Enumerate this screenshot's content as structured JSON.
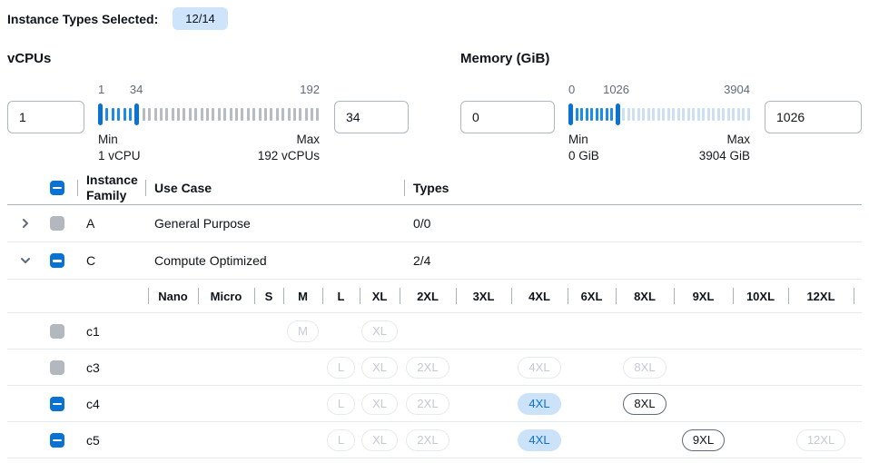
{
  "colors": {
    "accent": "#0972d3",
    "badge_bg": "#cde4fa",
    "tick_in": "#1d8be8",
    "vcpu_tick_out": "#b5bcc4",
    "memory_tick_out": "#cddff2",
    "pill_selected_bg": "#cbe2f9",
    "pill_selected_text": "#0972d3",
    "pill_disabled_border": "#e7eaee",
    "pill_disabled_text": "#c4cad2",
    "pill_available_border": "#5f6b7a",
    "checkbox_disabled": "#b3b8bf"
  },
  "header": {
    "label": "Instance Types Selected:",
    "badge": "12/14"
  },
  "filters": [
    {
      "title": "vCPUs",
      "from_value": "1",
      "to_value": "34",
      "slider": {
        "min": 1,
        "max": 192,
        "low": 1,
        "high": 34,
        "low_label": "1",
        "high_label": "34",
        "max_label": "192",
        "min_caption": "Min",
        "min_detail": "1 vCPU",
        "max_caption": "Max",
        "max_detail": "192 vCPUs"
      }
    },
    {
      "title": "Memory (GiB)",
      "from_value": "0",
      "to_value": "1026",
      "slider": {
        "min": 0,
        "max": 3904,
        "low": 0,
        "high": 1026,
        "low_label": "0",
        "high_label": "1026",
        "max_label": "3904",
        "min_caption": "Min",
        "min_detail": "0 GiB",
        "max_caption": "Max",
        "max_detail": "3904 GiB"
      }
    }
  ],
  "table": {
    "header_checkbox": "indeterminate",
    "columns": {
      "family": "Instance Family",
      "use_case": "Use Case",
      "types": "Types"
    },
    "families": [
      {
        "name": "A",
        "use_case": "General Purpose",
        "types": "0/0",
        "expanded": false,
        "checkbox": "disabled"
      },
      {
        "name": "C",
        "use_case": "Compute Optimized",
        "types": "2/4",
        "expanded": true,
        "checkbox": "indeterminate"
      }
    ],
    "sizes": [
      "Nano",
      "Micro",
      "S",
      "M",
      "L",
      "XL",
      "2XL",
      "3XL",
      "4XL",
      "6XL",
      "8XL",
      "9XL",
      "10XL",
      "12XL"
    ],
    "instance_rows": [
      {
        "name": "c1",
        "checkbox": "disabled",
        "pills": {
          "M": "disabled",
          "XL": "disabled"
        }
      },
      {
        "name": "c3",
        "checkbox": "disabled",
        "pills": {
          "L": "disabled",
          "XL": "disabled",
          "2XL": "disabled",
          "4XL": "disabled",
          "8XL": "disabled"
        }
      },
      {
        "name": "c4",
        "checkbox": "indeterminate",
        "pills": {
          "L": "disabled",
          "XL": "disabled",
          "2XL": "disabled",
          "4XL": "selected",
          "8XL": "available"
        }
      },
      {
        "name": "c5",
        "checkbox": "indeterminate",
        "pills": {
          "L": "disabled",
          "XL": "disabled",
          "2XL": "disabled",
          "4XL": "selected",
          "9XL": "available",
          "12XL": "disabled"
        }
      }
    ]
  }
}
